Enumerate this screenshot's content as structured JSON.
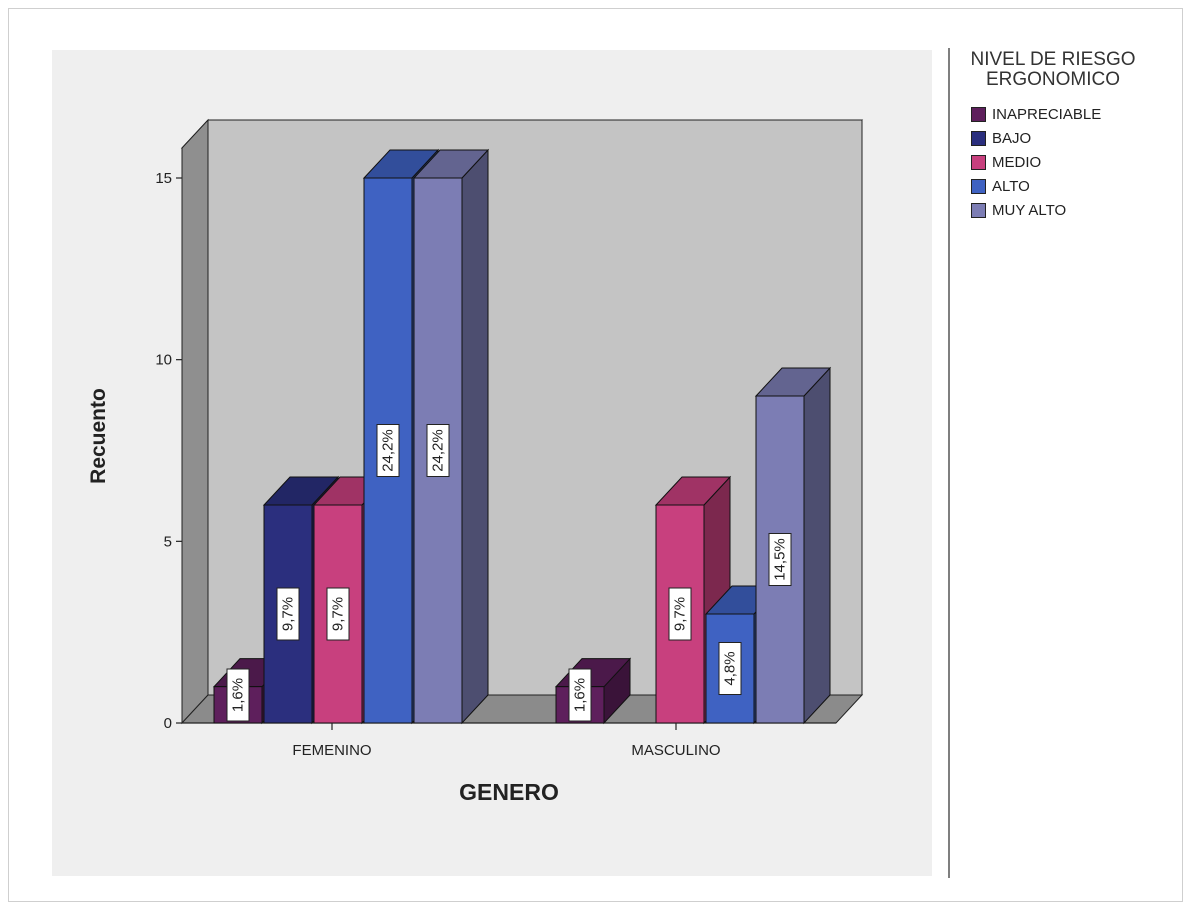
{
  "chart_data": {
    "type": "bar",
    "title": "",
    "xlabel": "GENERO",
    "ylabel": "Recuento",
    "categories": [
      "FEMENINO",
      "MASCULINO"
    ],
    "ylim": [
      0,
      15
    ],
    "yticks": [
      "0",
      "5",
      "10",
      "15"
    ],
    "legend_title": "NIVEL DE RIESGO ERGONOMICO",
    "legend_position": "right",
    "series": [
      {
        "name": "INAPRECIABLE",
        "color": "#5e1f5c",
        "values": [
          1,
          1
        ],
        "labels": [
          "1,6%",
          "1,6%"
        ]
      },
      {
        "name": "BAJO",
        "color": "#2b2f7e",
        "values": [
          6,
          0
        ],
        "labels": [
          "9,7%",
          ""
        ]
      },
      {
        "name": "MEDIO",
        "color": "#c8407e",
        "values": [
          6,
          6
        ],
        "labels": [
          "9,7%",
          "9,7%"
        ]
      },
      {
        "name": "ALTO",
        "color": "#3f62c2",
        "values": [
          15,
          3
        ],
        "labels": [
          "24,2%",
          "4,8%"
        ]
      },
      {
        "name": "MUY ALTO",
        "color": "#7c7db4",
        "values": [
          15,
          9
        ],
        "labels": [
          "24,2%",
          "14,5%"
        ]
      }
    ]
  }
}
